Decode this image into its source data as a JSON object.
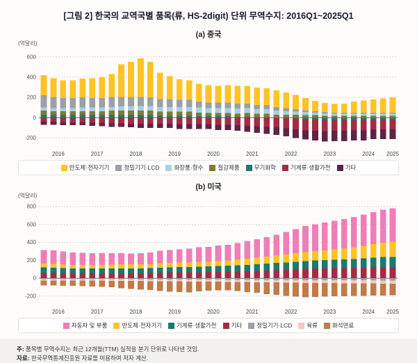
{
  "title": "[그림 2] 한국의 교역국별 품목(류, HS-2digit) 단위 무역수지: 2016Q1~2025Q1",
  "notes": [
    {
      "label": "주:",
      "text": "품목별 무역수지는 최근 12개월(TTM) 실적을 분기 단위로 나타낸 것임."
    },
    {
      "label": "자료:",
      "text": "한국무역통계진흥원 자료를 이용하여 저자 계산."
    }
  ],
  "chart_data": [
    {
      "type": "bar",
      "stacked": true,
      "title": "(a) 중국",
      "unit": "(억달러)",
      "ylim": [
        -300,
        660
      ],
      "yticks": [
        600,
        400,
        200,
        0,
        -200
      ],
      "quarters": [
        "2016Q1",
        "2016Q2",
        "2016Q3",
        "2016Q4",
        "2017Q1",
        "2017Q2",
        "2017Q3",
        "2017Q4",
        "2018Q1",
        "2018Q2",
        "2018Q3",
        "2018Q4",
        "2019Q1",
        "2019Q2",
        "2019Q3",
        "2019Q4",
        "2020Q1",
        "2020Q2",
        "2020Q3",
        "2020Q4",
        "2021Q1",
        "2021Q2",
        "2021Q3",
        "2021Q4",
        "2022Q1",
        "2022Q2",
        "2022Q3",
        "2022Q4",
        "2023Q1",
        "2023Q2",
        "2023Q3",
        "2023Q4",
        "2024Q1",
        "2024Q2",
        "2024Q3",
        "2024Q4",
        "2025Q1"
      ],
      "series": [
        {
          "name": "반도체·전자기기",
          "color": "#FFC325",
          "values": [
            200,
            185,
            175,
            175,
            185,
            195,
            205,
            225,
            320,
            350,
            380,
            350,
            260,
            230,
            205,
            195,
            175,
            170,
            165,
            170,
            175,
            175,
            170,
            165,
            165,
            155,
            140,
            120,
            100,
            90,
            85,
            90,
            110,
            120,
            130,
            140,
            150
          ]
        },
        {
          "name": "정밀기기·LCD",
          "color": "#9AA0A6",
          "values": [
            120,
            110,
            100,
            100,
            100,
            95,
            95,
            100,
            95,
            90,
            90,
            85,
            80,
            75,
            70,
            70,
            60,
            55,
            55,
            55,
            50,
            45,
            40,
            40,
            35,
            30,
            25,
            20,
            15,
            15,
            10,
            10,
            10,
            10,
            10,
            10,
            10
          ]
        },
        {
          "name": "화장품·향수",
          "color": "#A9CFE3",
          "values": [
            30,
            30,
            30,
            30,
            35,
            35,
            35,
            35,
            40,
            40,
            45,
            45,
            45,
            45,
            45,
            45,
            50,
            50,
            50,
            50,
            50,
            50,
            45,
            45,
            40,
            35,
            30,
            30,
            25,
            20,
            20,
            20,
            20,
            20,
            20,
            20,
            20
          ]
        },
        {
          "name": "철강제품",
          "color": "#7E7B33",
          "values": [
            40,
            40,
            40,
            40,
            40,
            40,
            40,
            45,
            45,
            45,
            45,
            45,
            40,
            40,
            40,
            40,
            35,
            30,
            30,
            30,
            30,
            35,
            35,
            35,
            30,
            30,
            30,
            25,
            25,
            20,
            20,
            20,
            20,
            20,
            20,
            20,
            20
          ]
        },
        {
          "name": "무기화학",
          "color": "#1B7A6E",
          "values": [
            30,
            25,
            25,
            25,
            25,
            25,
            25,
            25,
            25,
            25,
            25,
            25,
            20,
            20,
            20,
            20,
            15,
            15,
            15,
            15,
            10,
            10,
            5,
            5,
            0,
            -5,
            -10,
            -15,
            -20,
            -25,
            -25,
            -25,
            -25,
            -25,
            -20,
            -20,
            -20
          ]
        },
        {
          "name": "기계류·생활가전",
          "color": "#A32C44",
          "values": [
            -40,
            -40,
            -45,
            -45,
            -45,
            -50,
            -50,
            -55,
            -55,
            -60,
            -60,
            -60,
            -60,
            -60,
            -65,
            -65,
            -65,
            -65,
            -70,
            -70,
            -75,
            -80,
            -85,
            -90,
            -95,
            -100,
            -105,
            -110,
            -110,
            -110,
            -105,
            -105,
            -100,
            -100,
            -95,
            -95,
            -95
          ]
        },
        {
          "name": "기타",
          "color": "#5E2446",
          "values": [
            -30,
            -30,
            -30,
            -30,
            -30,
            -30,
            -35,
            -35,
            -35,
            -35,
            -40,
            -40,
            -40,
            -40,
            -45,
            -45,
            -45,
            -45,
            -50,
            -50,
            -55,
            -60,
            -65,
            -70,
            -75,
            -80,
            -85,
            -90,
            -95,
            -100,
            -100,
            -100,
            -100,
            -100,
            -95,
            -95,
            -95
          ]
        }
      ]
    },
    {
      "type": "bar",
      "stacked": true,
      "title": "(b) 미국",
      "unit": "(억달러)",
      "ylim": [
        -310,
        840
      ],
      "yticks": [
        800,
        600,
        400,
        200,
        0,
        -200
      ],
      "quarters": [
        "2016Q1",
        "2016Q2",
        "2016Q3",
        "2016Q4",
        "2017Q1",
        "2017Q2",
        "2017Q3",
        "2017Q4",
        "2018Q1",
        "2018Q2",
        "2018Q3",
        "2018Q4",
        "2019Q1",
        "2019Q2",
        "2019Q3",
        "2019Q4",
        "2020Q1",
        "2020Q2",
        "2020Q3",
        "2020Q4",
        "2021Q1",
        "2021Q2",
        "2021Q3",
        "2021Q4",
        "2022Q1",
        "2022Q2",
        "2022Q3",
        "2022Q4",
        "2023Q1",
        "2023Q2",
        "2023Q3",
        "2023Q4",
        "2024Q1",
        "2024Q2",
        "2024Q3",
        "2024Q4",
        "2025Q1"
      ],
      "series": [
        {
          "name": "자동차 및 부품",
          "color": "#F07EB6",
          "values": [
            150,
            150,
            145,
            140,
            135,
            130,
            130,
            130,
            125,
            120,
            125,
            130,
            140,
            145,
            150,
            155,
            160,
            165,
            170,
            175,
            185,
            195,
            205,
            215,
            230,
            250,
            270,
            290,
            300,
            310,
            320,
            330,
            340,
            350,
            360,
            370,
            380
          ]
        },
        {
          "name": "반도체·전자기기",
          "color": "#FFC325",
          "values": [
            45,
            45,
            42,
            40,
            40,
            40,
            40,
            42,
            45,
            45,
            45,
            45,
            50,
            50,
            50,
            50,
            55,
            55,
            60,
            60,
            65,
            70,
            75,
            80,
            85,
            90,
            95,
            100,
            105,
            110,
            115,
            120,
            130,
            140,
            150,
            160,
            165
          ]
        },
        {
          "name": "기계류·생활가전",
          "color": "#1B7A6E",
          "values": [
            60,
            58,
            56,
            55,
            55,
            54,
            54,
            55,
            55,
            55,
            55,
            55,
            58,
            58,
            60,
            60,
            62,
            62,
            65,
            65,
            68,
            70,
            72,
            75,
            78,
            80,
            85,
            88,
            90,
            92,
            95,
            98,
            100,
            105,
            110,
            115,
            118
          ]
        },
        {
          "name": "기타",
          "color": "#A32C44",
          "values": [
            60,
            58,
            57,
            55,
            55,
            55,
            55,
            55,
            55,
            55,
            56,
            58,
            60,
            62,
            64,
            66,
            68,
            70,
            72,
            74,
            76,
            80,
            84,
            88,
            92,
            96,
            100,
            104,
            108,
            110,
            112,
            114,
            116,
            118,
            120,
            122,
            120
          ]
        },
        {
          "name": "정밀기기·LCD",
          "color": "#9AA0A6",
          "values": [
            -10,
            -10,
            -10,
            -10,
            -11,
            -11,
            -11,
            -12,
            -12,
            -12,
            -13,
            -13,
            -14,
            -14,
            -15,
            -15,
            -15,
            -16,
            -16,
            -17,
            -17,
            -18,
            -18,
            -19,
            -19,
            -20,
            -20,
            -21,
            -21,
            -22,
            -22,
            -23,
            -23,
            -24,
            -24,
            -25,
            -25
          ]
        },
        {
          "name": "육류",
          "color": "#F3C9C3",
          "values": [
            -15,
            -15,
            -15,
            -16,
            -16,
            -17,
            -17,
            -18,
            -18,
            -19,
            -19,
            -20,
            -20,
            -21,
            -21,
            -22,
            -22,
            -23,
            -23,
            -24,
            -24,
            -25,
            -26,
            -27,
            -28,
            -29,
            -30,
            -31,
            -32,
            -32,
            -33,
            -33,
            -34,
            -34,
            -35,
            -35,
            -35
          ]
        },
        {
          "name": "화석연료",
          "color": "#BF7B4A",
          "values": [
            -55,
            -55,
            -58,
            -60,
            -62,
            -65,
            -68,
            -70,
            -80,
            -90,
            -95,
            -100,
            -110,
            -115,
            -118,
            -120,
            -110,
            -100,
            -95,
            -95,
            -100,
            -110,
            -120,
            -130,
            -140,
            -150,
            -155,
            -160,
            -155,
            -150,
            -148,
            -145,
            -140,
            -138,
            -135,
            -132,
            -130
          ]
        }
      ]
    }
  ]
}
